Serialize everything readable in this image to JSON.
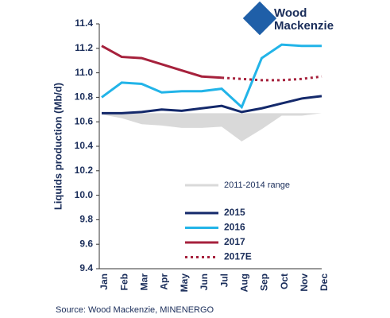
{
  "chart_data": {
    "type": "line",
    "y_label": "Liquids production (Mb/d)",
    "source": "Source: Wood Mackenzie, MINENERGO",
    "logo": [
      "Wood",
      "Mackenzie"
    ],
    "categories": [
      "Jan",
      "Feb",
      "Mar",
      "Apr",
      "May",
      "Jun",
      "Jul",
      "Aug",
      "Sep",
      "Oct",
      "Nov",
      "Dec"
    ],
    "ylim": [
      9.4,
      11.4
    ],
    "yticks": [
      9.4,
      9.6,
      9.8,
      {
        "value": 10,
        "label": "10.0"
      },
      10.2,
      10.4,
      10.6,
      10.8,
      {
        "value": 11,
        "label": "11.0"
      },
      11.2,
      11.4
    ],
    "range": {
      "name": "2011-2014 range",
      "color": "#d9d9d9",
      "low": [
        10.66,
        10.63,
        10.58,
        10.57,
        10.55,
        10.55,
        10.56,
        10.44,
        10.54,
        10.65,
        10.65,
        10.67
      ],
      "values": [
        10.67,
        10.67,
        10.67,
        10.67,
        10.67,
        10.67,
        10.67,
        10.67,
        10.67,
        10.67,
        10.67,
        10.67
      ]
    },
    "series": [
      {
        "name": "2015",
        "color": "#14296b",
        "dash": false,
        "values": [
          10.67,
          10.67,
          10.68,
          10.7,
          10.69,
          10.71,
          10.73,
          10.68,
          10.71,
          10.75,
          10.79,
          10.81
        ]
      },
      {
        "name": "2016",
        "color": "#22b4e8",
        "dash": false,
        "values": [
          10.8,
          10.92,
          10.91,
          10.84,
          10.85,
          10.85,
          10.87,
          10.72,
          11.12,
          11.23,
          11.22,
          11.22
        ]
      },
      {
        "name": "2017",
        "color": "#a6213c",
        "dash": false,
        "values": [
          11.22,
          11.13,
          11.12,
          11.07,
          11.02,
          10.97,
          10.96,
          null,
          null,
          null,
          null,
          null
        ]
      },
      {
        "name": "2017E",
        "color": "#a6213c",
        "dash": true,
        "values": [
          null,
          null,
          null,
          null,
          null,
          null,
          10.96,
          10.95,
          10.94,
          10.94,
          10.95,
          10.97
        ]
      }
    ]
  }
}
